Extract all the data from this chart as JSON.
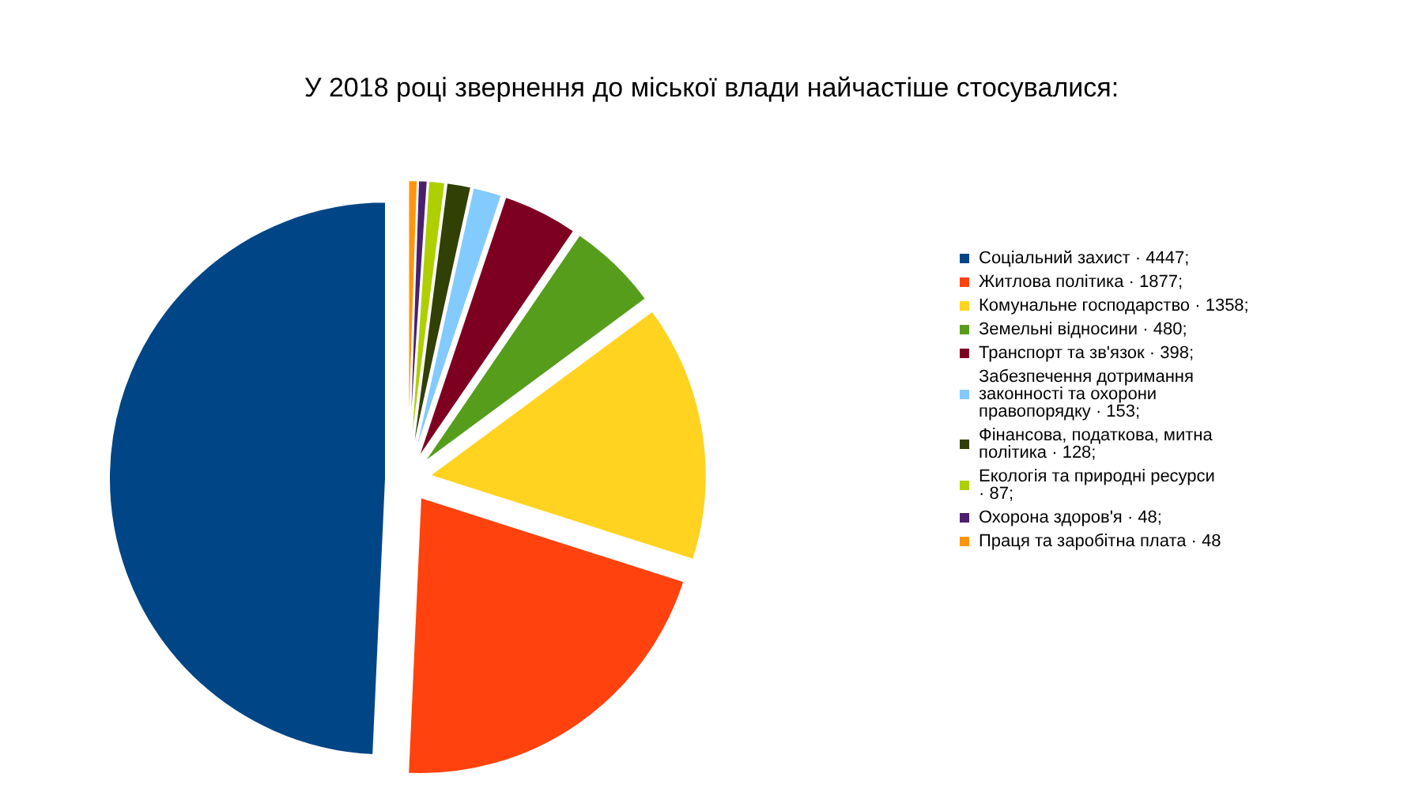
{
  "chart_data": {
    "type": "pie",
    "title": "У 2018 році звернення до міської влади найчастіше стосувалися:",
    "legend": "right",
    "categories": [
      "Соціальний захист",
      "Житлова політика",
      "Комунальне господарство",
      "Земельні відносини",
      "Транспорт та зв'язок",
      "Забезпечення дотримання законності та охорони правопорядку",
      "Фінансова, податкова, митна політика",
      "Екологія та природні ресурси",
      "Охорона здоров'я",
      "Праця та заробітна плата"
    ],
    "value_labels": [
      "· 4447;",
      "· 1877;",
      "· 1358;",
      "· 480;",
      "· 398;",
      "· 153;",
      "· 128;",
      "· 87;",
      "· 48;",
      "· 48"
    ],
    "values": [
      4447,
      1877,
      1358,
      480,
      398,
      153,
      128,
      87,
      48,
      48
    ],
    "colors": [
      "#004586",
      "#ff420e",
      "#ffd320",
      "#579d1c",
      "#7e0021",
      "#83caff",
      "#314004",
      "#aecf00",
      "#4b1f6f",
      "#ff950e"
    ]
  }
}
